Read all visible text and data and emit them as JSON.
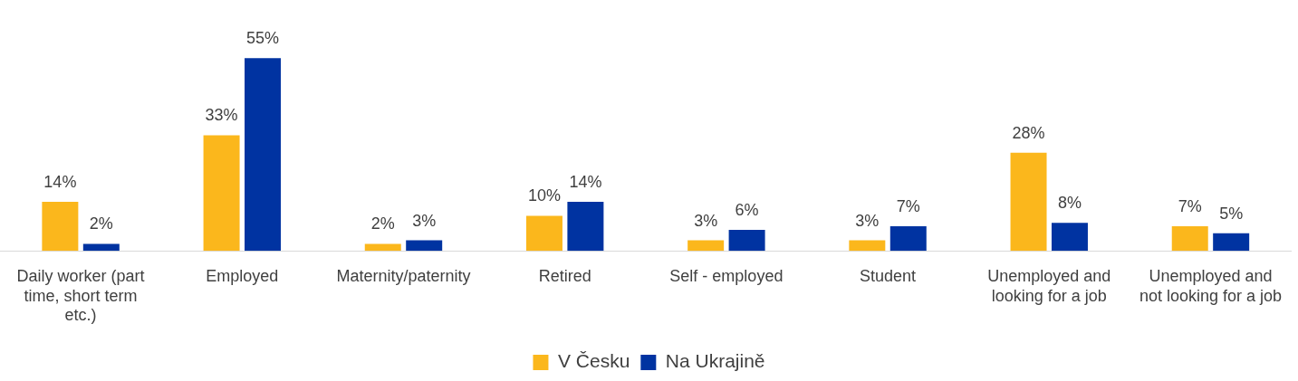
{
  "chart_data": {
    "type": "bar",
    "categories": [
      "Daily worker (part time, short term etc.)",
      "Employed",
      "Maternity/paternity",
      "Retired",
      "Self - employed",
      "Student",
      "Unemployed and looking for a job",
      "Unemployed and not looking for a job"
    ],
    "series": [
      {
        "name": "V Česku",
        "color": "#fbb71c",
        "values": [
          14,
          33,
          2,
          10,
          3,
          3,
          28,
          7
        ],
        "value_labels": [
          "14%",
          "33%",
          "2%",
          "10%",
          "3%",
          "3%",
          "28%",
          "7%"
        ]
      },
      {
        "name": "Na Ukrajině",
        "color": "#0033a1",
        "values": [
          2,
          55,
          3,
          14,
          6,
          7,
          8,
          5
        ],
        "value_labels": [
          "2%",
          "55%",
          "3%",
          "14%",
          "6%",
          "7%",
          "8%",
          "5%"
        ]
      }
    ],
    "tick_labels": "x",
    "grid": false,
    "legend": "bottom"
  }
}
